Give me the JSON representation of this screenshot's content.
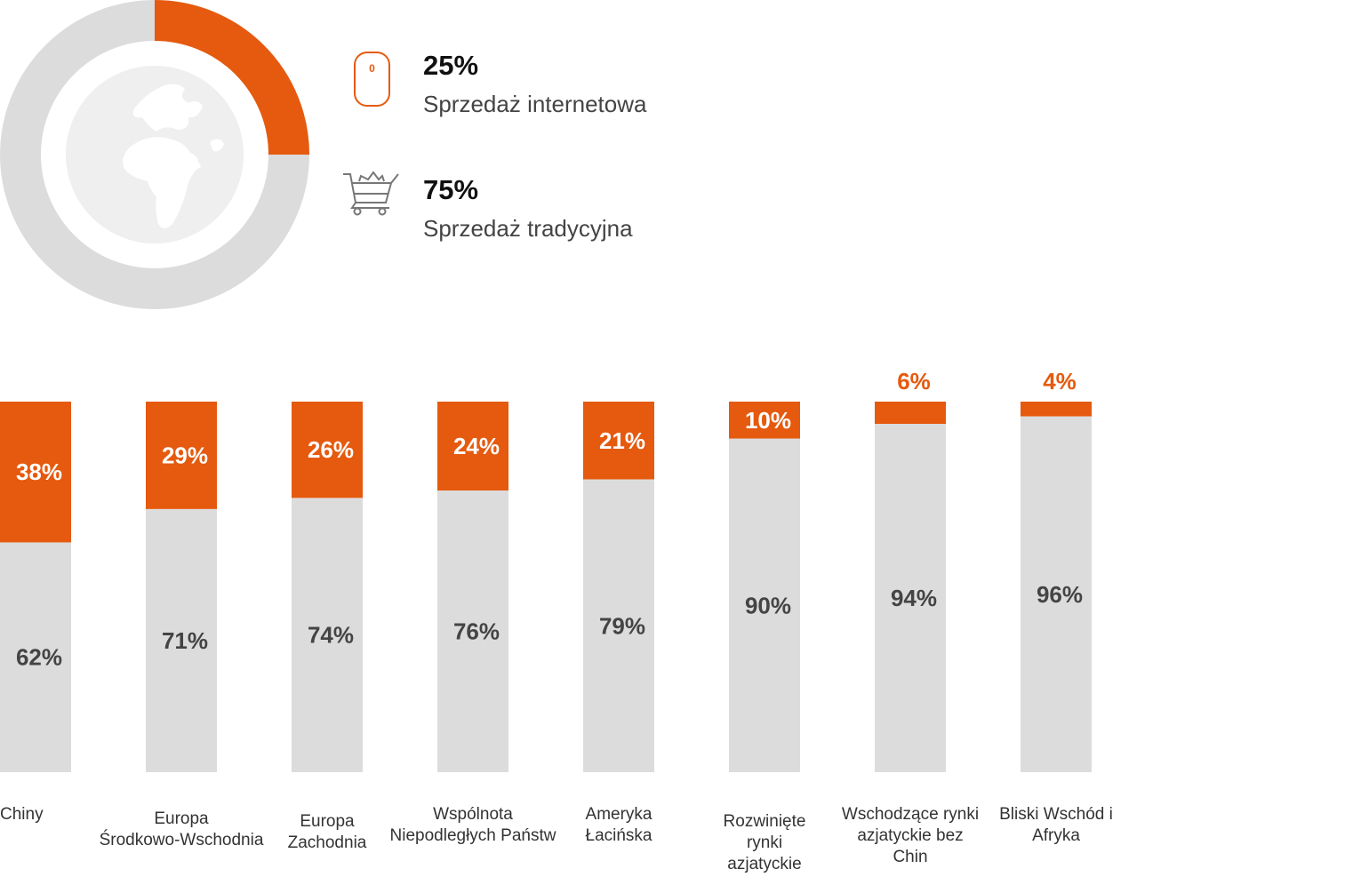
{
  "summary": {
    "online": {
      "value": "25%",
      "label": "Sprzedaż internetowa",
      "icon": "mouse-icon",
      "color": "#e55a0e"
    },
    "traditional": {
      "value": "75%",
      "label": "Sprzedaż tradycyjna",
      "icon": "shopping-cart-icon",
      "color": "#dcdcdd"
    },
    "donut_center_icon": "globe-icon"
  },
  "colors": {
    "online": "#e55a0e",
    "traditional": "#dcdcdd",
    "label_dark": "#444444"
  },
  "chart_data": [
    {
      "type": "pie",
      "variant": "donut",
      "categories": [
        "Sprzedaż internetowa",
        "Sprzedaż tradycyjna"
      ],
      "values": [
        25,
        75
      ]
    },
    {
      "type": "bar",
      "stacked": true,
      "percent_stacked": true,
      "categories": [
        "Chiny",
        "Europa Środkowo-Wschodnia",
        "Europa Zachodnia",
        "Wspólnota Niepodległych Państw",
        "Ameryka Łacińska",
        "Rozwinięte rynki azjatyckie",
        "Wschodzące rynki azjatyckie bez Chin",
        "Bliski Wschód i Afryka"
      ],
      "category_lines": [
        [
          "Chiny"
        ],
        [
          "Europa",
          "Środkowo-Wschodnia"
        ],
        [
          "Europa",
          "Zachodnia"
        ],
        [
          "Wspólnota",
          "Niepodległych Państw"
        ],
        [
          "Ameryka",
          "Łacińska"
        ],
        [
          "Rozwinięte",
          "rynki",
          "azjatyckie"
        ],
        [
          "Wschodzące rynki",
          "azjatyckie bez",
          "Chin"
        ],
        [
          "Bliski Wschód i",
          "Afryka"
        ]
      ],
      "series": [
        {
          "values": [
            38,
            29,
            26,
            24,
            21,
            10,
            6,
            4
          ],
          "labels": [
            "38%",
            "29%",
            "26%",
            "24%",
            "21%",
            "10%",
            "6%",
            "4%"
          ]
        },
        {
          "values": [
            62,
            71,
            74,
            76,
            79,
            90,
            94,
            96
          ],
          "labels": [
            "62%",
            "71%",
            "74%",
            "76%",
            "79%",
            "90%",
            "94%",
            "96%"
          ]
        }
      ],
      "ylim": [
        0,
        100
      ],
      "grid": false
    }
  ]
}
